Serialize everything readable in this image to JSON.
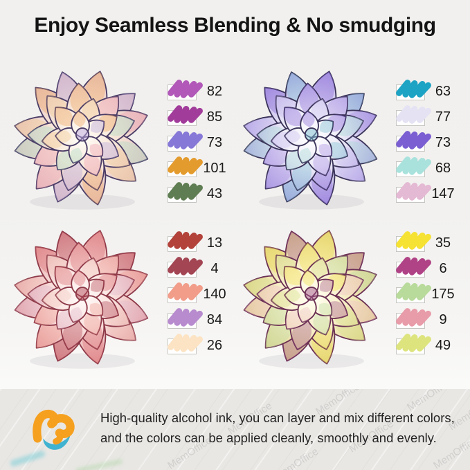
{
  "title": "Enjoy Seamless Blending & No smudging",
  "watermark_text": "MemOffice",
  "quadrants": [
    {
      "name": "peach-succulent",
      "swatches": [
        {
          "num": "82",
          "color": "#b158b8"
        },
        {
          "num": "85",
          "color": "#a23c9b"
        },
        {
          "num": "73",
          "color": "#8678d7"
        },
        {
          "num": "101",
          "color": "#e49b2d"
        },
        {
          "num": "43",
          "color": "#5f7d52"
        }
      ],
      "palette": {
        "inner": "#fffdf8",
        "base": "#f8e8da",
        "edge": "#e2bfc0",
        "outline": "#4a3c66",
        "accents": [
          "#f0a55e",
          "#b9a5de",
          "#ef9db0",
          "#abd9c3",
          "#f3c98f"
        ]
      }
    },
    {
      "name": "purple-succulent",
      "swatches": [
        {
          "num": "63",
          "color": "#1da3c4"
        },
        {
          "num": "77",
          "color": "#e4e2f3"
        },
        {
          "num": "73",
          "color": "#7a5ed2"
        },
        {
          "num": "68",
          "color": "#a9e2dd"
        },
        {
          "num": "147",
          "color": "#e4b9d3"
        }
      ],
      "palette": {
        "inner": "#ffffff",
        "base": "#edebf8",
        "edge": "#a99ae2",
        "outline": "#3a3359",
        "accents": [
          "#8a66d8",
          "#79bccf",
          "#a98fe2",
          "#a2d8d3",
          "#cabdf0"
        ]
      }
    },
    {
      "name": "pink-succulent",
      "swatches": [
        {
          "num": "13",
          "color": "#b2423a"
        },
        {
          "num": "4",
          "color": "#a34553"
        },
        {
          "num": "140",
          "color": "#f19d89"
        },
        {
          "num": "84",
          "color": "#b78bce"
        },
        {
          "num": "26",
          "color": "#fce3c3"
        }
      ],
      "palette": {
        "inner": "#fffaf8",
        "base": "#fae3e0",
        "edge": "#e39a9c",
        "outline": "#8e3a49",
        "accents": [
          "#d96a6e",
          "#b24653",
          "#ee9f92",
          "#e0b7cc",
          "#f2c7bd"
        ]
      }
    },
    {
      "name": "yellow-succulent",
      "swatches": [
        {
          "num": "35",
          "color": "#f6e233"
        },
        {
          "num": "6",
          "color": "#b04286"
        },
        {
          "num": "175",
          "color": "#b8da9b"
        },
        {
          "num": "9",
          "color": "#e89ba8"
        },
        {
          "num": "49",
          "color": "#dde47e"
        }
      ],
      "palette": {
        "inner": "#fffef4",
        "base": "#f9f1cc",
        "edge": "#ddcf86",
        "outline": "#6b3054",
        "accents": [
          "#f1e04a",
          "#a4568a",
          "#bcdca2",
          "#efc1cb",
          "#d4e08a"
        ]
      }
    }
  ],
  "footer": {
    "line1": "High-quality alcohol ink, you can layer and mix different colors,",
    "line2": "and the colors can be applied cleanly, smoothly and evenly.",
    "logo_orange": "#f6a01f",
    "logo_teal": "#41b3d0"
  }
}
